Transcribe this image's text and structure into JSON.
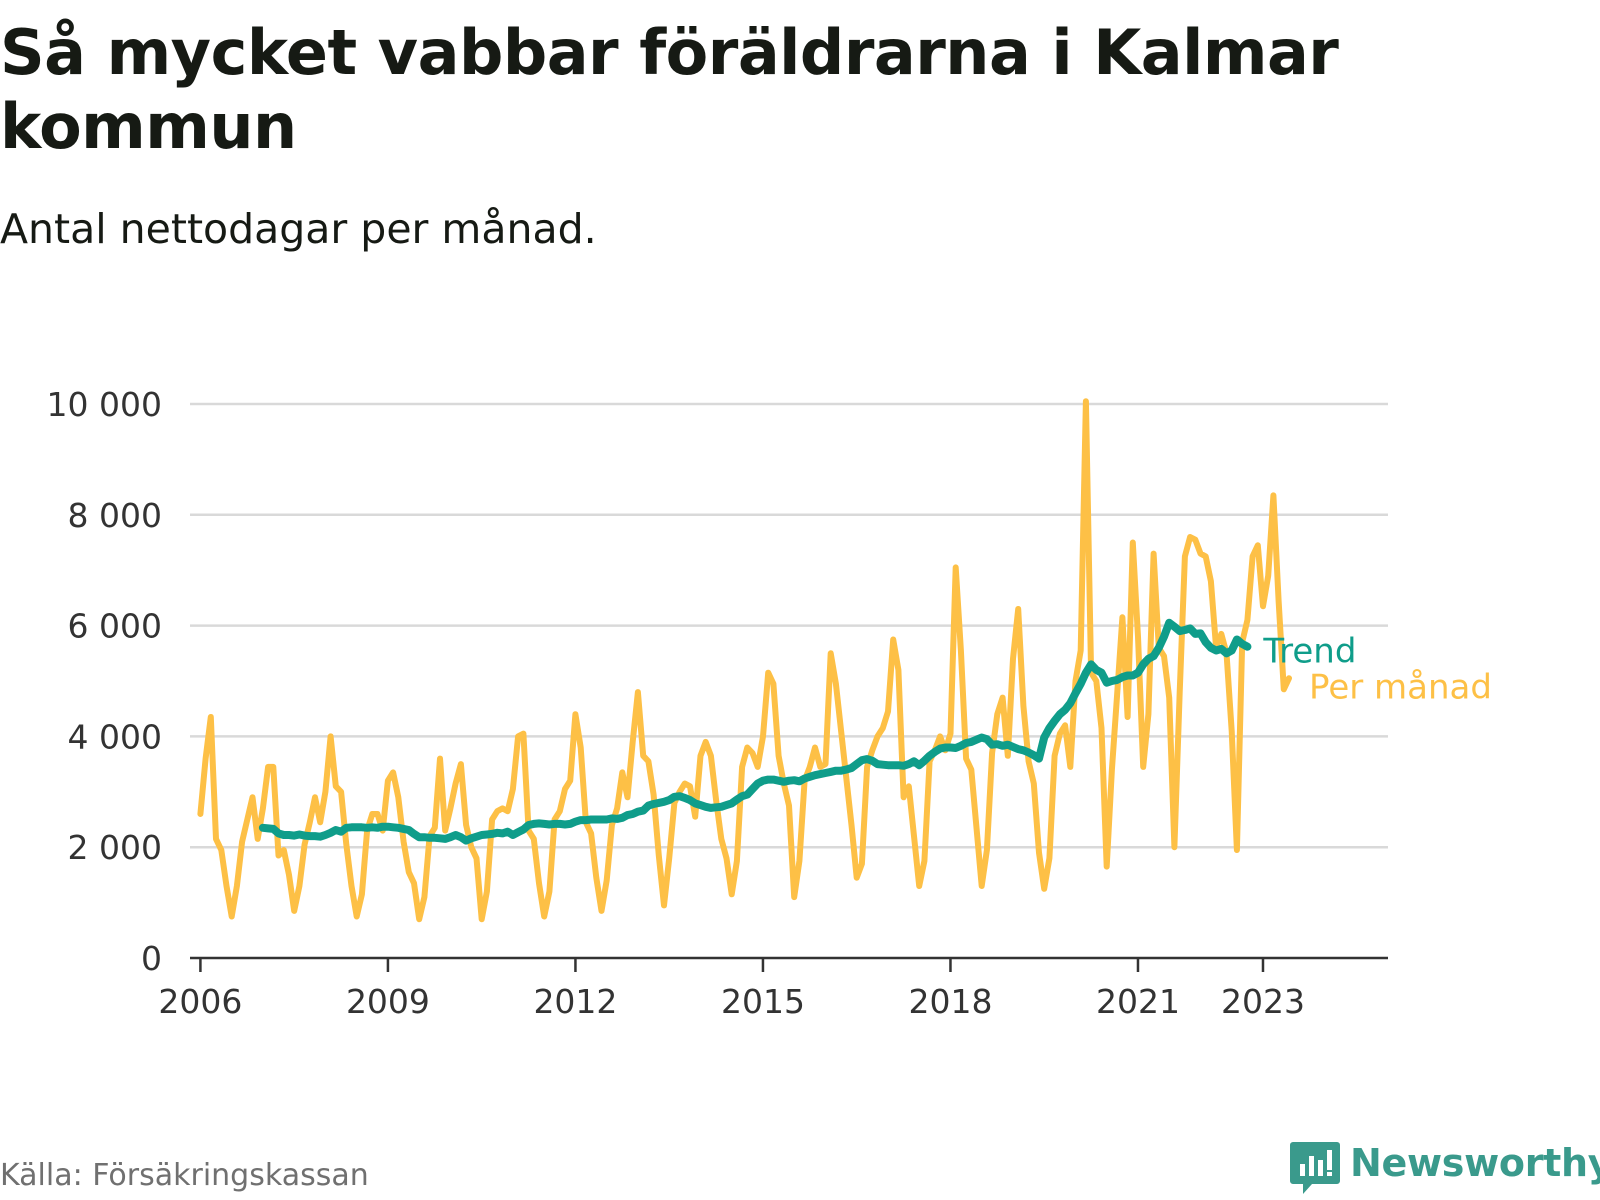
{
  "title": "Så mycket vabbar föräldrarna i Kalmar kommun",
  "subtitle": "Antal nettodagar per månad.",
  "source": "Källa: Försäkringskassan",
  "brand": {
    "name": "Newsworthy",
    "icon": "newsworthy-logo-icon",
    "color": "#3a9a8c"
  },
  "colors": {
    "monthly": "#fdc046",
    "trend": "#0f9d8a",
    "grid": "#d9d9d9",
    "axis": "#333333"
  },
  "chart_data": {
    "type": "line",
    "title": "Så mycket vabbar föräldrarna i Kalmar kommun",
    "subtitle": "Antal nettodagar per månad.",
    "xlabel": "",
    "ylabel": "",
    "x_ticks": [
      "2006",
      "2009",
      "2012",
      "2015",
      "2018",
      "2021",
      "2023"
    ],
    "y_ticks": [
      {
        "value": 0,
        "label": "0"
      },
      {
        "value": 2000,
        "label": "2 000"
      },
      {
        "value": 4000,
        "label": "4 000"
      },
      {
        "value": 6000,
        "label": "6 000"
      },
      {
        "value": 8000,
        "label": "8 000"
      },
      {
        "value": 10000,
        "label": "10 000"
      }
    ],
    "xlim": [
      "2005-11",
      "2025-01"
    ],
    "ylim": [
      0,
      10000
    ],
    "grid": "horizontal",
    "legend": "inline labels at line ends",
    "series": [
      {
        "name": "Per månad",
        "color": "#fdc046",
        "start": "2006-01",
        "frequency": "monthly",
        "values": [
          2600,
          3600,
          4350,
          2150,
          1950,
          1300,
          750,
          1300,
          2100,
          2500,
          2900,
          2150,
          2700,
          3450,
          3450,
          1850,
          1950,
          1500,
          850,
          1300,
          2050,
          2450,
          2900,
          2450,
          3000,
          4000,
          3100,
          3000,
          2050,
          1300,
          750,
          1150,
          2300,
          2600,
          2600,
          2300,
          3200,
          3350,
          2900,
          2100,
          1550,
          1350,
          700,
          1100,
          2200,
          2350,
          3600,
          2300,
          2700,
          3150,
          3500,
          2400,
          2000,
          1800,
          700,
          1200,
          2500,
          2650,
          2700,
          2650,
          3050,
          4000,
          4050,
          2300,
          2150,
          1350,
          750,
          1200,
          2500,
          2650,
          3050,
          3200,
          4400,
          3800,
          2450,
          2250,
          1450,
          850,
          1400,
          2400,
          2700,
          3350,
          2900,
          3900,
          4800,
          3650,
          3550,
          2950,
          1850,
          950,
          1800,
          2800,
          3000,
          3150,
          3100,
          2550,
          3650,
          3900,
          3650,
          2850,
          2150,
          1800,
          1150,
          1750,
          3450,
          3800,
          3700,
          3450,
          4000,
          5150,
          4950,
          3650,
          3150,
          2750,
          1100,
          1750,
          3200,
          3450,
          3800,
          3450,
          3500,
          5500,
          4950,
          4100,
          3250,
          2400,
          1450,
          1700,
          3450,
          3750,
          4000,
          4150,
          4450,
          5750,
          5200,
          2900,
          3100,
          2200,
          1300,
          1750,
          3550,
          3750,
          4000,
          3750,
          4050,
          7050,
          5550,
          3600,
          3400,
          2350,
          1300,
          1950,
          3700,
          4400,
          4700,
          3650,
          5400,
          6300,
          4550,
          3550,
          3150,
          1900,
          1250,
          1800,
          3650,
          4050,
          4200,
          3450,
          5000,
          5550,
          10050,
          5150,
          5000,
          4150,
          1650,
          3400,
          4750,
          6150,
          4350,
          7500,
          5800,
          3450,
          4400,
          7300,
          5600,
          5450,
          4700,
          2000,
          4800,
          7250,
          7600,
          7550,
          7300,
          7250,
          6800,
          5600,
          5850,
          5500,
          4100,
          1950,
          5700,
          6100,
          7250,
          7450,
          6350,
          6900,
          8350,
          6450,
          4850,
          5050
        ]
      },
      {
        "name": "Trend",
        "color": "#0f9d8a",
        "start": "2007-01",
        "frequency": "monthly",
        "values": [
          2350,
          2340,
          2330,
          2250,
          2220,
          2220,
          2210,
          2230,
          2210,
          2200,
          2200,
          2190,
          2220,
          2260,
          2310,
          2280,
          2350,
          2360,
          2360,
          2360,
          2350,
          2360,
          2350,
          2370,
          2370,
          2360,
          2350,
          2330,
          2310,
          2240,
          2180,
          2180,
          2170,
          2170,
          2160,
          2150,
          2180,
          2220,
          2180,
          2120,
          2160,
          2190,
          2220,
          2230,
          2240,
          2260,
          2250,
          2280,
          2220,
          2270,
          2320,
          2400,
          2420,
          2430,
          2420,
          2410,
          2420,
          2420,
          2410,
          2420,
          2460,
          2490,
          2490,
          2500,
          2500,
          2500,
          2500,
          2520,
          2510,
          2530,
          2580,
          2600,
          2640,
          2660,
          2750,
          2780,
          2800,
          2820,
          2850,
          2910,
          2920,
          2890,
          2850,
          2790,
          2760,
          2730,
          2710,
          2720,
          2730,
          2760,
          2790,
          2860,
          2920,
          2950,
          3050,
          3150,
          3200,
          3220,
          3220,
          3200,
          3180,
          3200,
          3210,
          3190,
          3240,
          3270,
          3300,
          3320,
          3340,
          3360,
          3380,
          3380,
          3400,
          3430,
          3500,
          3570,
          3590,
          3560,
          3500,
          3490,
          3480,
          3480,
          3480,
          3470,
          3500,
          3550,
          3480,
          3560,
          3650,
          3720,
          3780,
          3800,
          3800,
          3790,
          3830,
          3880,
          3900,
          3940,
          3980,
          3950,
          3850,
          3860,
          3830,
          3850,
          3810,
          3770,
          3750,
          3710,
          3660,
          3600,
          3980,
          4150,
          4280,
          4400,
          4480,
          4600,
          4780,
          4950,
          5150,
          5300,
          5200,
          5150,
          4970,
          5000,
          5020,
          5070,
          5100,
          5100,
          5150,
          5300,
          5400,
          5450,
          5600,
          5800,
          6050,
          5980,
          5900,
          5920,
          5950,
          5850,
          5860,
          5700,
          5600,
          5550,
          5580,
          5500,
          5550,
          5750,
          5670,
          5620
        ]
      }
    ]
  }
}
